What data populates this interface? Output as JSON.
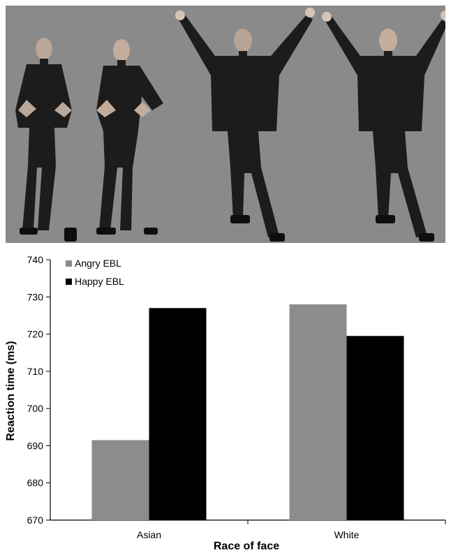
{
  "figure": {
    "figure_count": 4
  },
  "chart_data": {
    "type": "bar",
    "categories": [
      "Asian",
      "White"
    ],
    "series": [
      {
        "name": "Angry EBL",
        "values": [
          691.5,
          728
        ],
        "color": "#8c8c8c"
      },
      {
        "name": "Happy EBL",
        "values": [
          727,
          719.5
        ],
        "color": "#000000"
      }
    ],
    "xlabel": "Race of face",
    "ylabel": "Reaction time (ms)",
    "ylim": [
      670,
      740
    ],
    "yticks": [
      670,
      680,
      690,
      700,
      710,
      720,
      730,
      740
    ],
    "grid": false,
    "legend_position": "top-left"
  }
}
